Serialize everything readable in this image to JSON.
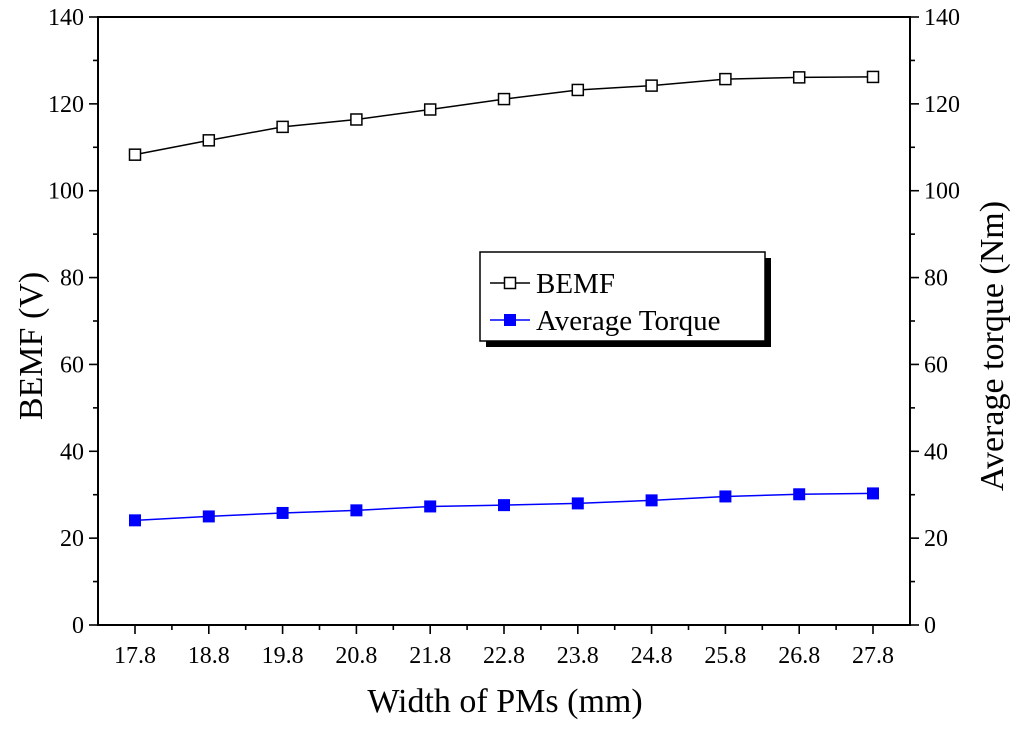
{
  "chart_data": {
    "type": "line",
    "title": "",
    "xlabel": "Width of PMs (mm)",
    "ylabel_left": "BEMF (V)",
    "ylabel_right": "Average torque (Nm)",
    "x": [
      17.8,
      18.8,
      19.8,
      20.8,
      21.8,
      22.8,
      23.8,
      24.8,
      25.8,
      26.8,
      27.8
    ],
    "x_tick_labels": [
      "17.8",
      "18.8",
      "19.8",
      "20.8",
      "21.8",
      "22.8",
      "23.8",
      "24.8",
      "25.8",
      "26.8",
      "27.8"
    ],
    "ylim_left": [
      0,
      140
    ],
    "ylim_right": [
      0,
      140
    ],
    "y_tick_labels": [
      "0",
      "20",
      "40",
      "60",
      "80",
      "100",
      "120",
      "140"
    ],
    "grid": false,
    "legend_position": "center-right",
    "series": [
      {
        "name": "BEMF",
        "axis": "left",
        "color": "#000000",
        "marker": "hollow-square",
        "values": [
          108.3,
          111.6,
          114.7,
          116.4,
          118.7,
          121.1,
          123.2,
          124.2,
          125.7,
          126.1,
          126.2
        ]
      },
      {
        "name": "Average Torque",
        "axis": "right",
        "color": "#0000ff",
        "marker": "filled-square",
        "values": [
          24.1,
          25.0,
          25.8,
          26.4,
          27.3,
          27.6,
          28.0,
          28.7,
          29.6,
          30.1,
          30.3
        ]
      }
    ]
  }
}
